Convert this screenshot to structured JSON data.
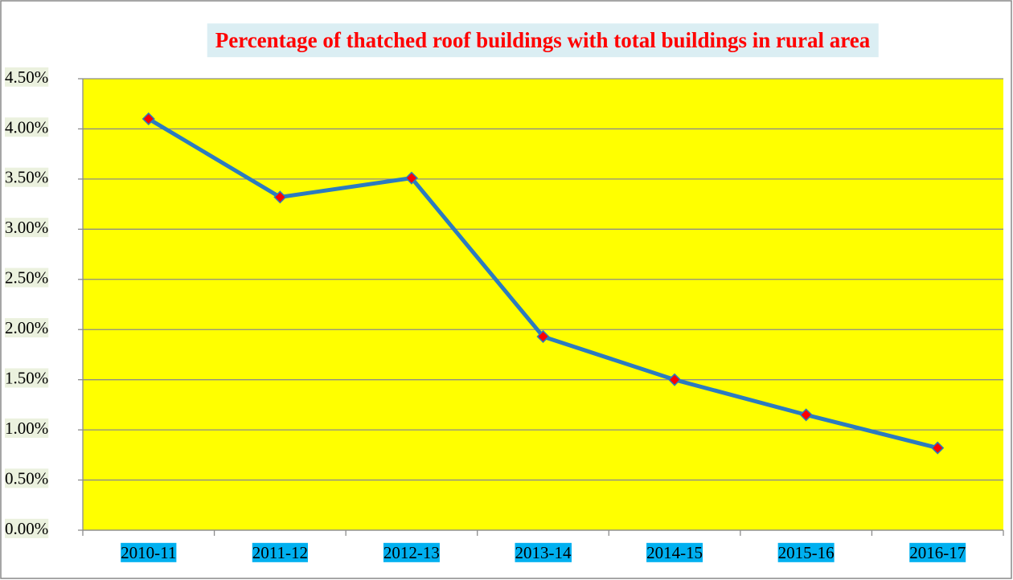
{
  "chart_data": {
    "type": "line",
    "title": "Percentage of thatched roof buildings  with total  buildings in rural area",
    "categories": [
      "2010-11",
      "2011-12",
      "2012-13",
      "2013-14",
      "2014-15",
      "2015-16",
      "2016-17"
    ],
    "series": [
      {
        "name": "Percentage",
        "color": "#2c7bbf",
        "values": [
          4.1,
          3.32,
          3.51,
          1.93,
          1.5,
          1.15,
          0.82
        ]
      }
    ],
    "ylim": [
      0,
      4.5
    ],
    "yticks": [
      {
        "value": 0,
        "label": "0.00%"
      },
      {
        "value": 0.5,
        "label": "0.50%"
      },
      {
        "value": 1,
        "label": "1.00%"
      },
      {
        "value": 1.5,
        "label": "1.50%"
      },
      {
        "value": 2,
        "label": "2.00%"
      },
      {
        "value": 2.5,
        "label": "2.50%"
      },
      {
        "value": 3,
        "label": "3.00%"
      },
      {
        "value": 3.5,
        "label": "3.50%"
      },
      {
        "value": 4,
        "label": "4.00%"
      },
      {
        "value": 4.5,
        "label": "4.50%"
      }
    ],
    "grid": true
  }
}
